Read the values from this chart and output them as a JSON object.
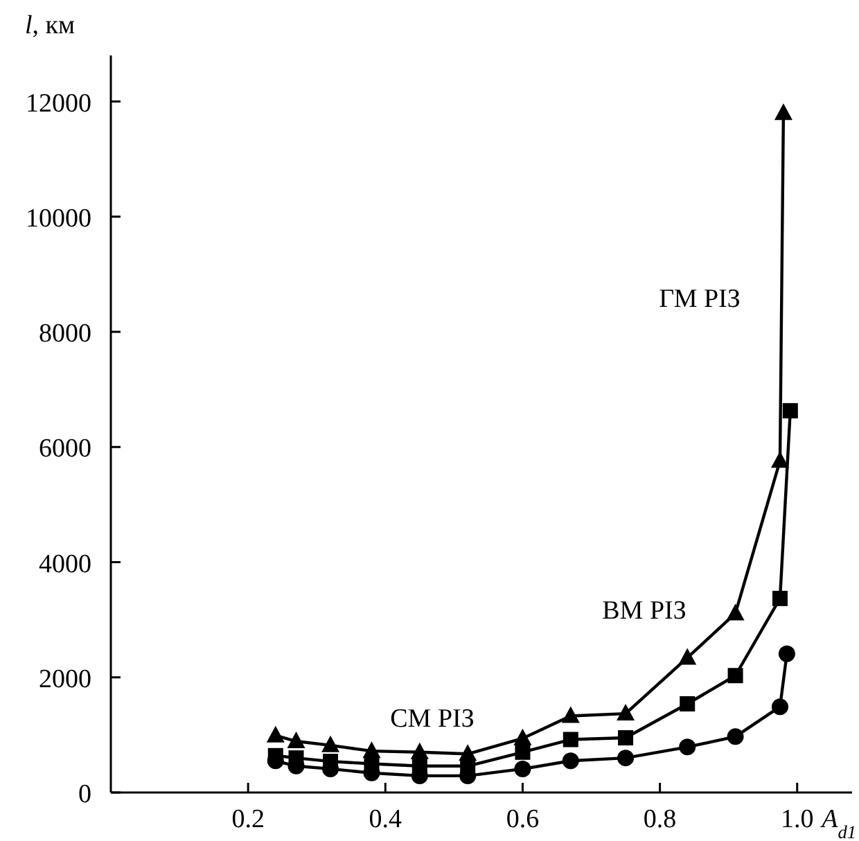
{
  "chart_data": {
    "type": "line",
    "xlabel": "A$_{d1}$",
    "ylabel": "l, км",
    "xlim": [
      0,
      1.08
    ],
    "ylim": [
      0,
      12800
    ],
    "xticks": [
      0.2,
      0.4,
      0.6,
      0.8,
      {
        "value": 1,
        "label": "1.0"
      }
    ],
    "yticks": [
      0,
      2000,
      4000,
      6000,
      8000,
      10000,
      12000
    ],
    "grid": false,
    "line_style": "solid",
    "series": [
      {
        "color": "#000000",
        "marker": "triangle",
        "x": [
          0.24,
          0.27,
          0.32,
          0.38,
          0.45,
          0.52,
          0.6,
          0.67,
          0.75,
          0.84,
          0.91,
          0.975,
          0.98
        ],
        "values": [
          990,
          890,
          820,
          720,
          700,
          670,
          940,
          1330,
          1370,
          2340,
          3110,
          5760,
          11800
        ]
      },
      {
        "color": "#000000",
        "marker": "square",
        "x": [
          0.24,
          0.27,
          0.32,
          0.38,
          0.45,
          0.52,
          0.6,
          0.67,
          0.75,
          0.84,
          0.91,
          0.975,
          0.99
        ],
        "values": [
          640,
          600,
          540,
          500,
          460,
          460,
          700,
          920,
          950,
          1540,
          2030,
          3370,
          6630
        ]
      },
      {
        "color": "#000000",
        "marker": "circle",
        "x": [
          0.24,
          0.27,
          0.32,
          0.38,
          0.45,
          0.52,
          0.6,
          0.67,
          0.75,
          0.84,
          0.91,
          0.975,
          0.985
        ],
        "values": [
          550,
          460,
          410,
          340,
          290,
          290,
          410,
          550,
          600,
          790,
          970,
          1490,
          2410
        ]
      }
    ],
    "annotations": [
      "ГМ РІЗ",
      "ВМ РІЗ",
      "СМ РІЗ"
    ]
  }
}
